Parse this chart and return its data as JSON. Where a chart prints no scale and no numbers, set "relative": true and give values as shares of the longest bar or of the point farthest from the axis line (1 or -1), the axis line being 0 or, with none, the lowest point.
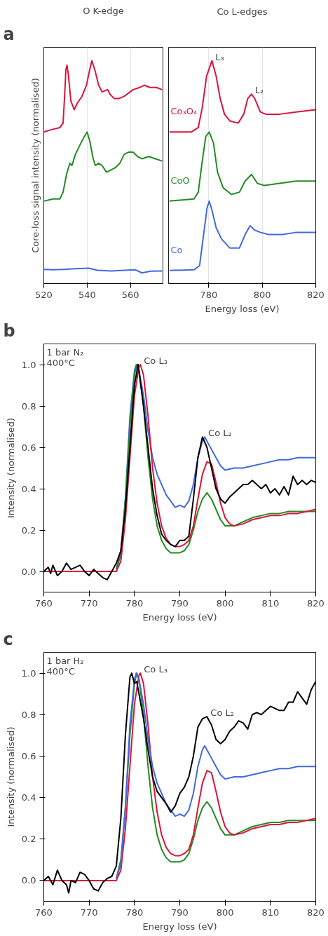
{
  "chart_data": [
    {
      "type": "line",
      "relative": true,
      "title": "O K-edge",
      "ylabel": "Core-loss signal intensity (normalised)",
      "xlim": [
        520,
        575
      ],
      "xticks": [
        520,
        540,
        560
      ],
      "grid": "x",
      "annotations": [
        "a"
      ],
      "series": [
        {
          "color": "#dc143c",
          "x": [
            520,
            523.3,
            527.4,
            528.9,
            529.6,
            530.2,
            530.7,
            531.3,
            532.5,
            534,
            535.5,
            537.6,
            539.7,
            541.2,
            542.2,
            543.8,
            545.3,
            546.9,
            549.5,
            550.5,
            552.5,
            554.6,
            557.1,
            561.2,
            564.3,
            566.4,
            568.9,
            572,
            574.6
          ],
          "values": [
            0.68,
            0.69,
            0.7,
            0.72,
            0.84,
            0.96,
            0.98,
            0.94,
            0.82,
            0.78,
            0.81,
            0.84,
            0.89,
            0.96,
            1.0,
            0.95,
            0.89,
            0.86,
            0.87,
            0.85,
            0.83,
            0.83,
            0.84,
            0.87,
            0.88,
            0.89,
            0.88,
            0.88,
            0.87
          ]
        },
        {
          "color": "#228b22",
          "x": [
            520,
            524.3,
            527.4,
            528.9,
            530.5,
            532,
            533,
            534.6,
            536.6,
            538.7,
            540,
            541.2,
            542.8,
            543.8,
            545.3,
            546.9,
            548.9,
            551,
            553,
            555.1,
            557.1,
            559.2,
            561.2,
            563.3,
            565.3,
            568.4,
            571.5,
            574.6
          ],
          "values": [
            0.37,
            0.38,
            0.38,
            0.41,
            0.49,
            0.54,
            0.53,
            0.58,
            0.62,
            0.66,
            0.68,
            0.64,
            0.56,
            0.53,
            0.54,
            0.53,
            0.5,
            0.51,
            0.52,
            0.54,
            0.58,
            0.59,
            0.59,
            0.57,
            0.56,
            0.57,
            0.56,
            0.55
          ]
        },
        {
          "color": "#4169e1",
          "x": [
            520,
            524.3,
            529.4,
            534.6,
            540.7,
            544.8,
            551,
            557.1,
            562.3,
            565.3,
            569.4,
            574.6
          ],
          "values": [
            0.064,
            0.062,
            0.064,
            0.067,
            0.069,
            0.06,
            0.057,
            0.06,
            0.062,
            0.048,
            0.056,
            0.057
          ]
        }
      ]
    },
    {
      "type": "line",
      "relative": true,
      "title": "Co L-edges",
      "xlabel": "Energy loss (eV)",
      "xlim": [
        765,
        820
      ],
      "xticks": [
        780,
        800,
        820
      ],
      "grid": "x",
      "annotations": [
        {
          "text": "L₃",
          "x": 781.2,
          "y": 1.0
        },
        {
          "text": "L₂",
          "x": 796,
          "y": 0.85
        }
      ],
      "series": [
        {
          "name": "Co₃O₄",
          "color": "#dc143c",
          "x": [
            765.3,
            773.5,
            776.1,
            777.6,
            779.2,
            781.2,
            782.8,
            784.3,
            785.9,
            787.9,
            791,
            793.1,
            794.6,
            796,
            797.2,
            799.3,
            801.3,
            806.5,
            812.7,
            819.9
          ],
          "values": [
            0.68,
            0.68,
            0.7,
            0.79,
            0.93,
            1.0,
            0.93,
            0.83,
            0.76,
            0.73,
            0.72,
            0.76,
            0.83,
            0.85,
            0.83,
            0.77,
            0.76,
            0.76,
            0.77,
            0.78
          ]
        },
        {
          "name": "CoO",
          "color": "#228b22",
          "x": [
            765.3,
            774.5,
            776.1,
            777.6,
            778.9,
            780.2,
            781.8,
            783.3,
            785.4,
            788.5,
            791.5,
            793.6,
            796,
            798.2,
            800.8,
            806.5,
            812.7,
            819.9
          ],
          "values": [
            0.37,
            0.38,
            0.41,
            0.55,
            0.66,
            0.68,
            0.63,
            0.5,
            0.43,
            0.4,
            0.41,
            0.46,
            0.49,
            0.45,
            0.44,
            0.45,
            0.46,
            0.46
          ]
        },
        {
          "name": "Co",
          "color": "#4169e1",
          "x": [
            765.3,
            774.5,
            776.6,
            778.1,
            779.4,
            780.2,
            781.2,
            782.8,
            784.8,
            787.9,
            791.5,
            793.6,
            795.5,
            797.2,
            799.3,
            802.4,
            807.5,
            812.7,
            819.9
          ],
          "values": [
            0.059,
            0.062,
            0.081,
            0.22,
            0.34,
            0.37,
            0.33,
            0.25,
            0.2,
            0.16,
            0.16,
            0.22,
            0.26,
            0.24,
            0.23,
            0.22,
            0.22,
            0.23,
            0.23
          ]
        }
      ]
    },
    {
      "type": "line",
      "xlabel": "Energy loss (eV)",
      "ylabel": "Intensity (normalised)",
      "xlim": [
        760,
        820
      ],
      "ylim": [
        -0.1,
        1.1
      ],
      "xticks": [
        760,
        770,
        780,
        790,
        800,
        810,
        820
      ],
      "yticks": [
        {
          "value": 0,
          "label": "0.0"
        },
        {
          "value": 0.2,
          "label": "0.2"
        },
        {
          "value": 0.4,
          "label": "0.4"
        },
        {
          "value": 0.6,
          "label": "0.6"
        },
        {
          "value": 0.8,
          "label": "0.8"
        },
        {
          "value": 1.0,
          "label": "1.0"
        }
      ],
      "annotations": [
        "b",
        "1 bar N₂",
        "400°C",
        {
          "text": "Co L₃",
          "x": 781.3,
          "y": 1.0
        },
        {
          "text": "Co L₂",
          "x": 795.5,
          "y": 0.65
        }
      ],
      "series": [
        {
          "color": "#4169e1",
          "x": [
            776,
            777,
            778,
            779,
            780,
            780.4,
            781,
            782,
            783,
            784,
            785,
            786,
            787,
            788,
            789,
            790,
            791,
            792,
            793,
            794,
            795,
            795.5,
            796,
            797,
            798,
            799,
            800,
            802,
            804,
            806,
            808,
            810,
            812,
            814,
            816,
            818,
            820
          ],
          "values": [
            0.01,
            0.08,
            0.35,
            0.75,
            0.97,
            1.0,
            0.97,
            0.85,
            0.68,
            0.55,
            0.47,
            0.42,
            0.37,
            0.34,
            0.31,
            0.32,
            0.31,
            0.34,
            0.42,
            0.55,
            0.63,
            0.65,
            0.63,
            0.59,
            0.55,
            0.51,
            0.49,
            0.5,
            0.5,
            0.51,
            0.52,
            0.53,
            0.54,
            0.54,
            0.55,
            0.55,
            0.55
          ]
        },
        {
          "color": "#228b22",
          "x": [
            776,
            777,
            778,
            779,
            780,
            780.5,
            781,
            782,
            783,
            784,
            785,
            786,
            787,
            788,
            789,
            790,
            791,
            792,
            793,
            794,
            795,
            796,
            797,
            798,
            799,
            800,
            802,
            804,
            806,
            808,
            810,
            812,
            814,
            816,
            818,
            820
          ],
          "values": [
            0.01,
            0.1,
            0.35,
            0.7,
            0.95,
            1.0,
            0.97,
            0.8,
            0.55,
            0.35,
            0.22,
            0.15,
            0.11,
            0.09,
            0.09,
            0.09,
            0.1,
            0.13,
            0.2,
            0.29,
            0.35,
            0.38,
            0.35,
            0.3,
            0.25,
            0.22,
            0.22,
            0.24,
            0.26,
            0.27,
            0.28,
            0.28,
            0.29,
            0.29,
            0.29,
            0.29
          ]
        },
        {
          "color": "#dc143c",
          "x": [
            760,
            770,
            775,
            776,
            777,
            778,
            779,
            780,
            781,
            781.3,
            782,
            783,
            784,
            785,
            786,
            787,
            788,
            789,
            790,
            791,
            792,
            793,
            794,
            795,
            796,
            797,
            798,
            799,
            800,
            801,
            802,
            804,
            806,
            808,
            810,
            812,
            814,
            816,
            818,
            820
          ],
          "values": [
            0,
            0,
            0,
            0,
            0.05,
            0.25,
            0.55,
            0.85,
            0.99,
            1.0,
            0.95,
            0.75,
            0.5,
            0.33,
            0.22,
            0.16,
            0.13,
            0.12,
            0.12,
            0.13,
            0.15,
            0.22,
            0.35,
            0.47,
            0.53,
            0.52,
            0.43,
            0.33,
            0.26,
            0.23,
            0.22,
            0.23,
            0.25,
            0.26,
            0.27,
            0.27,
            0.28,
            0.28,
            0.29,
            0.3
          ]
        },
        {
          "color": "#000000",
          "x": [
            760,
            761,
            761.5,
            762,
            763,
            764,
            765,
            766,
            767,
            768,
            769,
            770,
            771,
            772,
            773,
            774,
            775,
            776,
            777,
            778,
            779,
            780,
            780.8,
            781,
            782,
            783,
            784,
            785,
            786,
            787,
            788,
            789,
            790,
            791,
            792,
            793,
            794,
            795,
            796,
            797,
            798,
            799,
            800,
            801,
            802,
            803,
            804,
            805,
            806,
            807,
            808,
            809,
            810,
            811,
            812,
            813,
            814,
            815,
            816,
            817,
            818,
            819,
            820
          ],
          "values": [
            0,
            0.02,
            -0.01,
            0.03,
            -0.02,
            0,
            0.04,
            0.01,
            0.02,
            0.03,
            0,
            -0.02,
            0.01,
            -0.01,
            -0.03,
            -0.04,
            0,
            0.04,
            0.1,
            0.3,
            0.6,
            0.9,
            1.0,
            0.97,
            0.8,
            0.6,
            0.4,
            0.27,
            0.18,
            0.15,
            0.13,
            0.12,
            0.15,
            0.15,
            0.17,
            0.35,
            0.55,
            0.65,
            0.6,
            0.5,
            0.4,
            0.35,
            0.33,
            0.36,
            0.38,
            0.4,
            0.42,
            0.42,
            0.44,
            0.42,
            0.4,
            0.42,
            0.38,
            0.4,
            0.37,
            0.41,
            0.37,
            0.46,
            0.42,
            0.44,
            0.42,
            0.44,
            0.43
          ]
        }
      ]
    },
    {
      "type": "line",
      "xlabel": "Energy loss (eV)",
      "ylabel": "Intensity (normalised)",
      "xlim": [
        760,
        820
      ],
      "ylim": [
        -0.1,
        1.1
      ],
      "xticks": [
        760,
        770,
        780,
        790,
        800,
        810,
        820
      ],
      "yticks": [
        {
          "value": 0,
          "label": "0.0"
        },
        {
          "value": 0.2,
          "label": "0.2"
        },
        {
          "value": 0.4,
          "label": "0.4"
        },
        {
          "value": 0.6,
          "label": "0.6"
        },
        {
          "value": 0.8,
          "label": "0.8"
        },
        {
          "value": 1.0,
          "label": "1.0"
        }
      ],
      "annotations": [
        "c",
        "1 bar H₂",
        "400°C",
        {
          "text": "Co L₃",
          "x": 781.3,
          "y": 1.0
        },
        {
          "text": "Co L₂",
          "x": 796,
          "y": 0.79
        }
      ],
      "series": [
        {
          "color": "#228b22",
          "x": [
            776,
            777,
            778,
            779,
            780,
            780.5,
            781,
            782,
            783,
            784,
            785,
            786,
            787,
            788,
            789,
            790,
            791,
            792,
            793,
            794,
            795,
            796,
            797,
            798,
            799,
            800,
            802,
            804,
            806,
            808,
            810,
            812,
            814,
            816,
            818,
            820
          ],
          "values": [
            0.01,
            0.1,
            0.35,
            0.7,
            0.95,
            1.0,
            0.97,
            0.8,
            0.55,
            0.35,
            0.22,
            0.15,
            0.11,
            0.09,
            0.09,
            0.09,
            0.1,
            0.13,
            0.2,
            0.29,
            0.35,
            0.38,
            0.35,
            0.3,
            0.25,
            0.22,
            0.22,
            0.24,
            0.26,
            0.27,
            0.28,
            0.28,
            0.29,
            0.29,
            0.29,
            0.29
          ]
        },
        {
          "color": "#dc143c",
          "x": [
            760,
            770,
            775,
            776,
            777,
            778,
            779,
            780,
            781,
            781.3,
            782,
            783,
            784,
            785,
            786,
            787,
            788,
            789,
            790,
            791,
            792,
            793,
            794,
            795,
            796,
            797,
            798,
            799,
            800,
            801,
            802,
            804,
            806,
            808,
            810,
            812,
            814,
            816,
            818,
            820
          ],
          "values": [
            0,
            0,
            0,
            0,
            0.05,
            0.25,
            0.55,
            0.85,
            0.99,
            1.0,
            0.95,
            0.75,
            0.5,
            0.33,
            0.22,
            0.16,
            0.13,
            0.12,
            0.12,
            0.13,
            0.15,
            0.22,
            0.35,
            0.47,
            0.53,
            0.52,
            0.43,
            0.33,
            0.26,
            0.23,
            0.22,
            0.23,
            0.25,
            0.26,
            0.27,
            0.27,
            0.28,
            0.28,
            0.29,
            0.3
          ]
        },
        {
          "color": "#4169e1",
          "x": [
            776,
            777,
            778,
            779,
            780,
            780.4,
            781,
            782,
            783,
            784,
            785,
            786,
            787,
            788,
            789,
            790,
            791,
            792,
            793,
            794,
            795,
            795.5,
            796,
            797,
            798,
            799,
            800,
            802,
            804,
            806,
            808,
            810,
            812,
            814,
            816,
            818,
            820
          ],
          "values": [
            0.01,
            0.08,
            0.35,
            0.75,
            0.97,
            1.0,
            0.97,
            0.85,
            0.68,
            0.55,
            0.47,
            0.42,
            0.37,
            0.34,
            0.31,
            0.32,
            0.31,
            0.34,
            0.42,
            0.55,
            0.63,
            0.65,
            0.63,
            0.59,
            0.55,
            0.51,
            0.49,
            0.5,
            0.5,
            0.51,
            0.52,
            0.53,
            0.54,
            0.54,
            0.55,
            0.55,
            0.55
          ]
        },
        {
          "color": "#000000",
          "x": [
            760,
            761,
            762,
            763,
            764,
            765,
            765.5,
            766,
            767,
            768,
            769,
            770,
            771,
            772,
            773,
            774,
            775,
            776,
            777,
            778,
            779,
            779.4,
            780,
            780.5,
            781,
            782,
            783,
            784,
            785,
            786,
            787,
            788,
            789,
            790,
            791,
            792,
            793,
            794,
            795,
            796,
            797,
            798,
            799,
            800,
            801,
            802,
            803,
            804,
            805,
            806,
            807,
            808,
            809,
            810,
            811,
            812,
            813,
            814,
            815,
            816,
            817,
            818,
            819,
            820
          ],
          "values": [
            0,
            0.02,
            -0.02,
            0.05,
            0,
            -0.02,
            -0.06,
            0,
            -0.01,
            0.04,
            0.03,
            0,
            -0.04,
            -0.05,
            -0.01,
            0.01,
            0.02,
            0.07,
            0.3,
            0.7,
            0.98,
            1.0,
            0.95,
            0.96,
            0.9,
            0.78,
            0.63,
            0.5,
            0.43,
            0.4,
            0.37,
            0.33,
            0.36,
            0.42,
            0.45,
            0.5,
            0.6,
            0.74,
            0.78,
            0.79,
            0.75,
            0.68,
            0.66,
            0.68,
            0.72,
            0.74,
            0.77,
            0.76,
            0.73,
            0.8,
            0.81,
            0.8,
            0.82,
            0.84,
            0.83,
            0.82,
            0.82,
            0.86,
            0.86,
            0.91,
            0.88,
            0.85,
            0.92,
            0.96
          ]
        }
      ]
    }
  ]
}
